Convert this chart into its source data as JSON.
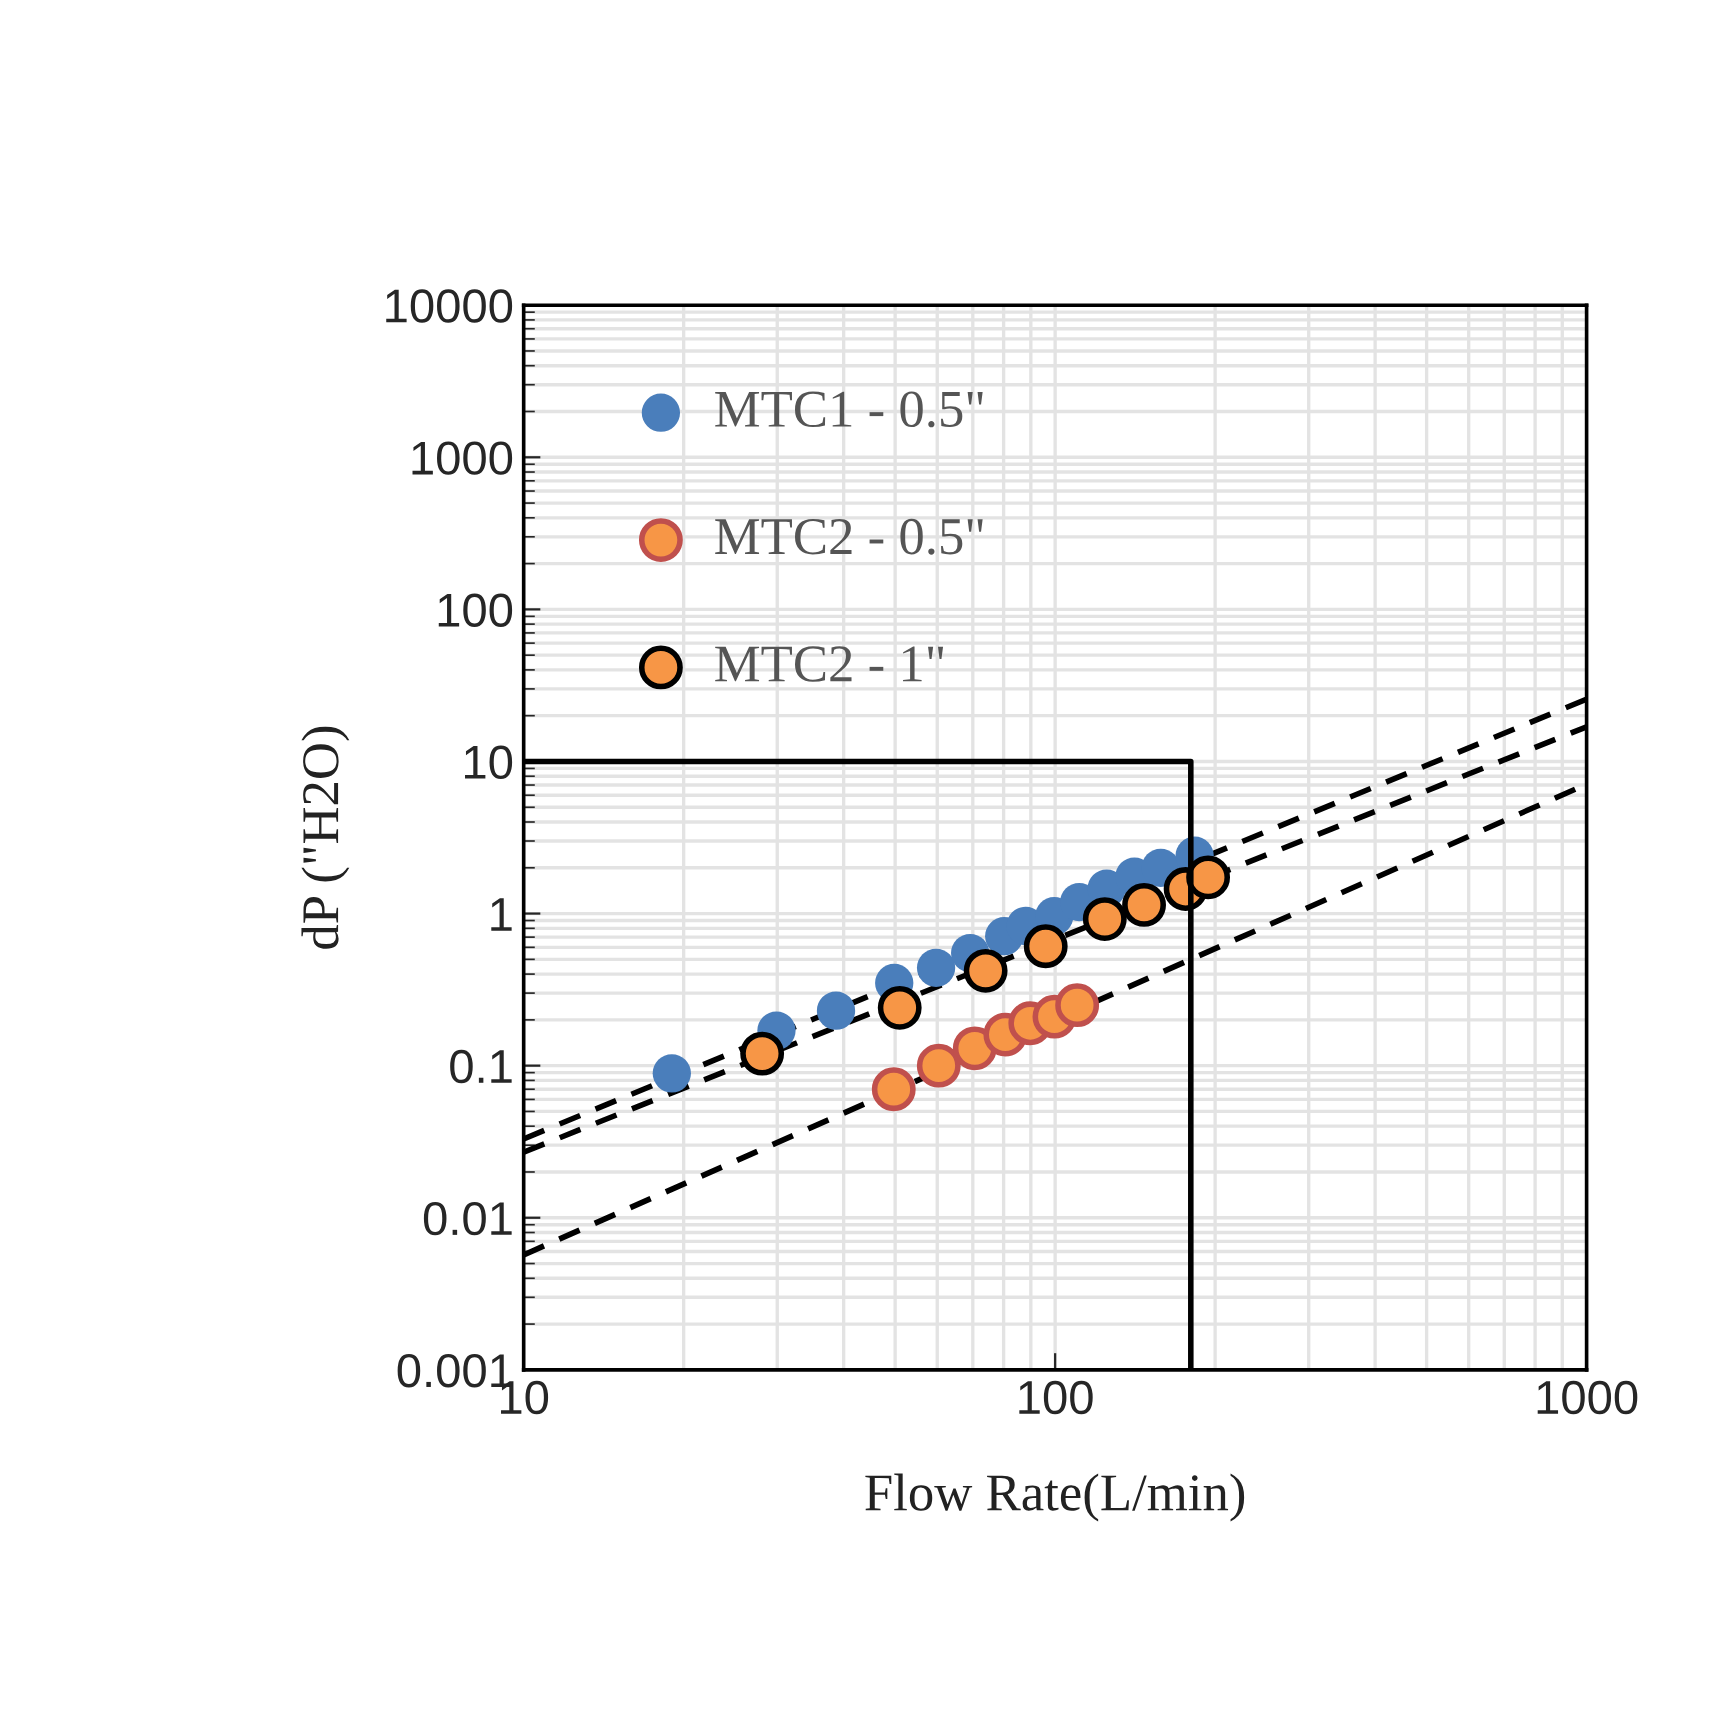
{
  "chart_data": {
    "type": "scatter",
    "xlabel": "Flow Rate(L/min)",
    "ylabel": "dP (\"H2O)",
    "log": "xy",
    "xlim": [
      10,
      1000
    ],
    "xticks": [
      10,
      100,
      1000
    ],
    "ylim": [
      0.001,
      10000
    ],
    "yticks": [
      0.001,
      0.01,
      0.1,
      1,
      10,
      100,
      1000,
      10000
    ],
    "grid": true,
    "legend": "top left",
    "marker": "circle",
    "series": [
      {
        "name": "MTC1 - 0.5\"",
        "color": "#4a7ebb",
        "x": [
          19,
          29.9,
          38.7,
          49.8,
          59.7,
          69.2,
          80.2,
          88,
          99.6,
          111,
          125,
          141,
          158,
          172,
          183
        ],
        "values": [
          0.089,
          0.17,
          0.23,
          0.35,
          0.44,
          0.55,
          0.71,
          0.83,
          0.96,
          1.19,
          1.46,
          1.75,
          2.0,
          null,
          2.4
        ]
      },
      {
        "name": "MTC2 - 0.5\"",
        "color": "#f79646",
        "x": [
          49.7,
          60.4,
          70.6,
          80.6,
          89.8,
          99.7,
          110
        ],
        "values": [
          0.07,
          0.1,
          0.13,
          0.16,
          0.19,
          0.21,
          0.25
        ]
      },
      {
        "name": "MTC2 - 1\"",
        "color": "#f79646",
        "x": [
          28.1,
          51,
          74,
          96,
          124,
          147,
          176,
          194
        ],
        "values": [
          0.12,
          0.24,
          0.42,
          0.61,
          0.92,
          1.14,
          1.45,
          1.73
        ]
      },
      {
        "type": "line",
        "color": "#000000",
        "line_style": "dashed",
        "marker": "none",
        "x": [
          10,
          1000
        ],
        "values": [
          0.033,
          25.7
        ]
      },
      {
        "type": "line",
        "color": "#000000",
        "line_style": "dashed",
        "marker": "none",
        "x": [
          10,
          1000
        ],
        "values": [
          0.027,
          16.9
        ]
      },
      {
        "type": "line",
        "color": "#000000",
        "line_style": "dashed",
        "marker": "none",
        "x": [
          10,
          1000
        ],
        "values": [
          0.0057,
          7.1
        ]
      },
      {
        "type": "line",
        "color": "#000000",
        "line_style": "solid",
        "marker": "none",
        "x": [
          10,
          180,
          180
        ],
        "values": [
          10,
          10,
          0.001
        ]
      }
    ]
  }
}
